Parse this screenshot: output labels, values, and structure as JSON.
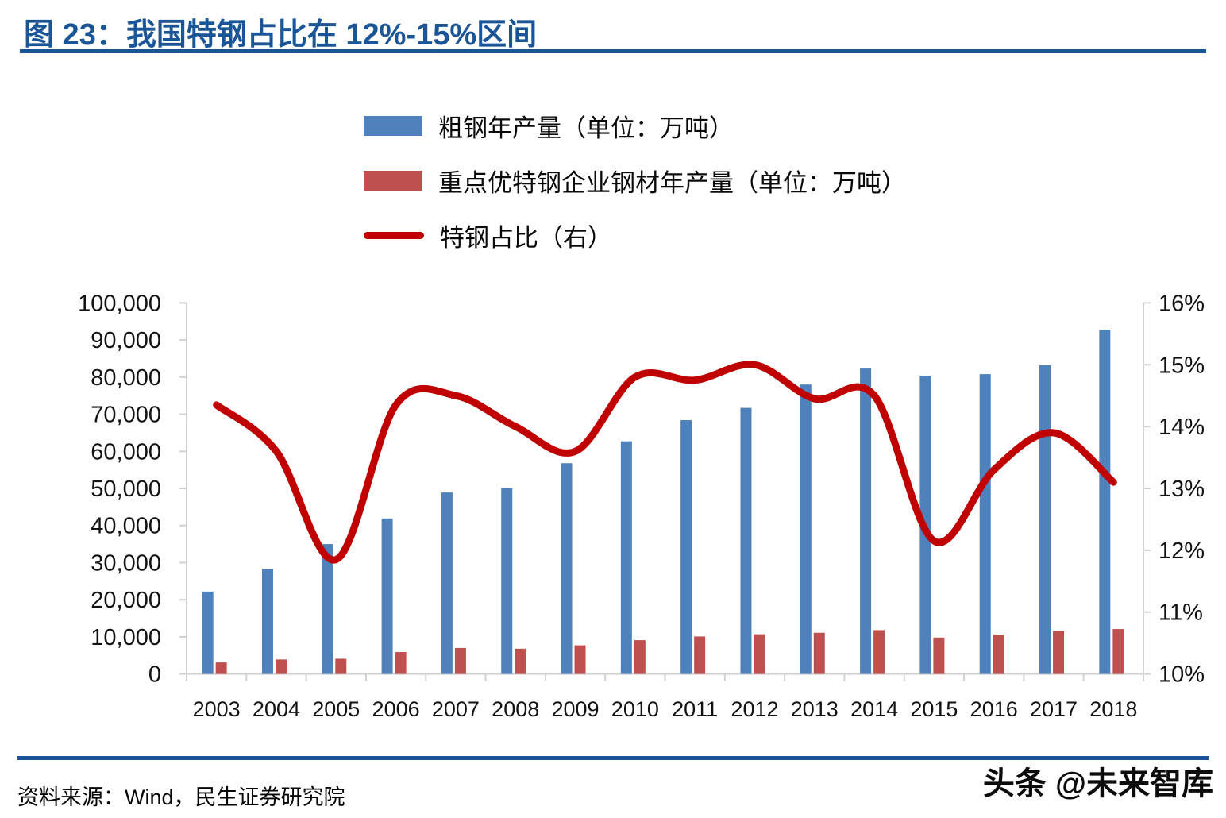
{
  "title": "图 23：我国特钢占比在 12%-15%区间",
  "accent_color": "#1A5697",
  "legend": {
    "items": [
      {
        "label": "粗钢年产量（单位：万吨）",
        "type": "bar",
        "color": "#4F81BD"
      },
      {
        "label": "重点优特钢企业钢材年产量（单位：万吨）",
        "type": "bar",
        "color": "#C0504D"
      },
      {
        "label": "特钢占比（右）",
        "type": "line",
        "color": "#C00000"
      }
    ]
  },
  "footer": {
    "source": "资料来源：Wind，民生证券研究院",
    "watermark": "头条 @未来智库"
  },
  "chart_data": {
    "type": "bar",
    "subtype": "grouped-bars-with-line",
    "categories": [
      "2003",
      "2004",
      "2005",
      "2006",
      "2007",
      "2008",
      "2009",
      "2010",
      "2011",
      "2012",
      "2013",
      "2014",
      "2015",
      "2016",
      "2017",
      "2018"
    ],
    "series": [
      {
        "name": "粗钢年产量（单位：万吨）",
        "type": "bar",
        "axis": "left",
        "color": "#4F81BD",
        "values": [
          22200,
          28300,
          35000,
          41900,
          48900,
          50100,
          56800,
          62700,
          68400,
          71700,
          78000,
          82300,
          80400,
          80800,
          83200,
          92800
        ]
      },
      {
        "name": "重点优特钢企业钢材年产量（单位：万吨）",
        "type": "bar",
        "axis": "left",
        "color": "#C0504D",
        "values": [
          3100,
          3900,
          4100,
          5900,
          7000,
          6800,
          7700,
          9100,
          10100,
          10700,
          11100,
          11800,
          9800,
          10600,
          11600,
          12100
        ]
      },
      {
        "name": "特钢占比（右）",
        "type": "line",
        "axis": "right",
        "color": "#C00000",
        "values": [
          14.35,
          13.6,
          11.85,
          14.35,
          14.5,
          14.0,
          13.6,
          14.8,
          14.75,
          15.0,
          14.45,
          14.5,
          12.15,
          13.3,
          13.9,
          13.1
        ]
      }
    ],
    "left_axis": {
      "min": 0,
      "max": 100000,
      "step": 10000,
      "tick_labels": [
        "100,000",
        "90,000",
        "80,000",
        "70,000",
        "60,000",
        "50,000",
        "40,000",
        "30,000",
        "20,000",
        "10,000",
        "0"
      ]
    },
    "right_axis": {
      "min": 10,
      "max": 16,
      "step": 1,
      "tick_labels": [
        "16%",
        "15%",
        "14%",
        "13%",
        "12%",
        "11%",
        "10%"
      ]
    },
    "grid": false,
    "legend_position": "top-center",
    "axis_color": "#D2D2D2"
  }
}
